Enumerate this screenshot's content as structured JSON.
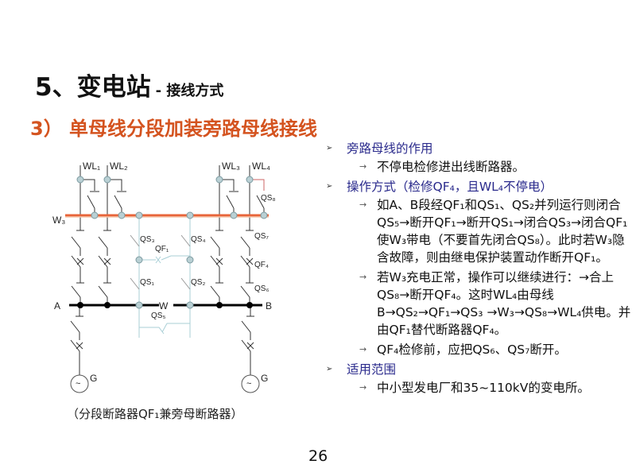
{
  "title": {
    "main": "5、变电站",
    "sub": "- 接线方式"
  },
  "subtitle": "3） 单母线分段加装旁路母线接线",
  "diagram": {
    "labels": {
      "wl1": "WL₁",
      "wl2": "WL₂",
      "wl3": "WL₃",
      "wl4": "WL₄",
      "w3": "W₃",
      "a": "A",
      "b": "B",
      "w": "W",
      "qs1": "QS₁",
      "qs2": "QS₂",
      "qs3": "QS₃",
      "qs4": "QS₄",
      "qs5": "QS₅",
      "qs6": "QS₆",
      "qs7": "QS₇",
      "qs8": "QS₈",
      "qf1": "QF₁",
      "qf4": "QF₄",
      "g1": "G",
      "g2": "G"
    },
    "colors": {
      "bypass_bus": "#e8643a",
      "section_bus": "#000000",
      "bypass_circuit": "#a9cfd6"
    }
  },
  "caption": "（分段断路器QF₁兼旁母断路器）",
  "content": [
    {
      "heading": "旁路母线的作用",
      "items": [
        "不停电检修进出线断路器。"
      ]
    },
    {
      "heading": "操作方式（检修QF₄，且WL₄不停电）",
      "items": [
        "如A、B段经QF₁和QS₁、QS₂并列运行则闭合QS₅→断开QF₁→断开QS₁→闭合QS₃→闭合QF₁使W₃带电（不要首先闭合QS₈）。此时若W₃隐含故障，则由继电保护装置动作断开QF₁。",
        "若W₃充电正常，操作可以继续进行：→合上QS₈→断开QF₄。这时WL₄由母线B→QS₂→QF₁→QS₃ →W₃→QS₈→WL₄供电。并由QF₁替代断路器QF₄。",
        "QF₄检修前，应把QS₆、QS₇断开。"
      ]
    },
    {
      "heading": "适用范围",
      "items": [
        "中小型发电厂和35~110kV的变电所。"
      ]
    }
  ],
  "page_number": "26"
}
